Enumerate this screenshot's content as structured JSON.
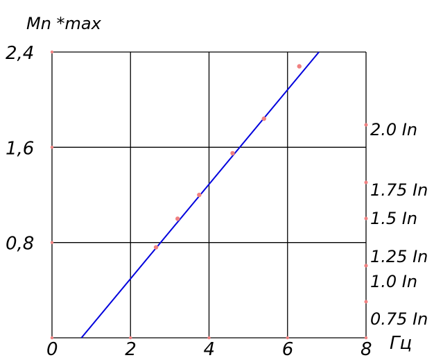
{
  "chart_data": {
    "type": "scatter",
    "title": "",
    "ylabel": "Mn *max",
    "xlabel": "Гц",
    "xlim": [
      0,
      8
    ],
    "ylim": [
      0,
      2.4
    ],
    "x_ticks": [
      0,
      2,
      4,
      6,
      8
    ],
    "x_tick_labels": [
      "0",
      "2",
      "4",
      "6",
      "8"
    ],
    "y_ticks": [
      0.8,
      1.6,
      2.4
    ],
    "y_tick_labels": [
      "0,8",
      "1,6",
      "2,4"
    ],
    "grid": true,
    "points": [
      {
        "x": 2.65,
        "y": 0.76
      },
      {
        "x": 3.2,
        "y": 1.0
      },
      {
        "x": 3.75,
        "y": 1.2
      },
      {
        "x": 4.6,
        "y": 1.55
      },
      {
        "x": 5.4,
        "y": 1.84
      },
      {
        "x": 6.3,
        "y": 2.28
      }
    ],
    "fit_line": {
      "x": [
        0.75,
        6.8
      ],
      "y": [
        0.0,
        2.4
      ]
    },
    "right_axis_markers": [
      {
        "label": "2.0 In",
        "y": 1.8
      },
      {
        "label": "1.75 In",
        "y": 1.3
      },
      {
        "label": "1.5 In",
        "y": 1.0
      },
      {
        "label": "1.25 In",
        "y": 0.6
      },
      {
        "label": "1.0 In",
        "y": 0.6
      },
      {
        "label": "0.75 In",
        "y": 0.3
      }
    ],
    "colors": {
      "points": "#f08080",
      "line": "#0000dd",
      "grid": "#000000"
    }
  }
}
